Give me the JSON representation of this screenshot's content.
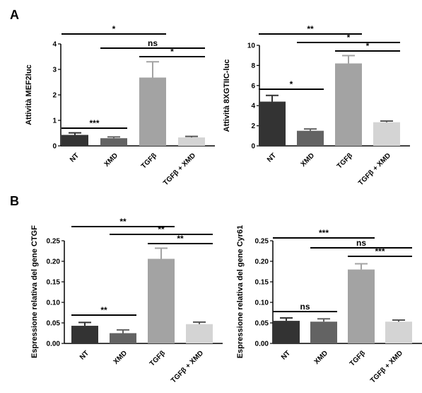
{
  "panels": [
    {
      "letter": "A"
    },
    {
      "letter": "B"
    }
  ],
  "colors": {
    "NT": "#333333",
    "XMD": "#636363",
    "TGFb": "#a3a3a3",
    "TGFb_XMD": "#d4d4d4"
  },
  "chart_data": [
    {
      "type": "bar",
      "panel": "A",
      "categories": [
        "NT",
        "XMD",
        "TGFβ",
        "TGFβ + XMD"
      ],
      "values": [
        0.43,
        0.3,
        2.68,
        0.33
      ],
      "errors": [
        0.08,
        0.05,
        0.62,
        0.04
      ],
      "ylabel": "Attività MEF2luc",
      "ylim": [
        0,
        4
      ],
      "yticks": [
        "0",
        "1",
        "2",
        "3",
        "4"
      ],
      "significance": [
        {
          "from": 0,
          "to": 2,
          "label": "*"
        },
        {
          "from": 1,
          "to": 3,
          "label": "ns"
        },
        {
          "from": 2,
          "to": 3,
          "label": "*"
        },
        {
          "from": 0,
          "to": 1,
          "label": "***"
        }
      ]
    },
    {
      "type": "bar",
      "panel": "A",
      "categories": [
        "NT",
        "XMD",
        "TGFβ",
        "TGFβ + XMD"
      ],
      "values": [
        4.4,
        1.5,
        8.2,
        2.35
      ],
      "errors": [
        0.62,
        0.18,
        0.78,
        0.12
      ],
      "ylabel": "Attività 8XGTIIC-luc",
      "ylim": [
        0,
        10
      ],
      "yticks": [
        "0",
        "2",
        "4",
        "6",
        "8",
        "10"
      ],
      "significance": [
        {
          "from": 0,
          "to": 2,
          "label": "**"
        },
        {
          "from": 1,
          "to": 3,
          "label": "*"
        },
        {
          "from": 2,
          "to": 3,
          "label": "*"
        },
        {
          "from": 0,
          "to": 1,
          "label": "*"
        }
      ]
    },
    {
      "type": "bar",
      "panel": "B",
      "categories": [
        "NT",
        "XMD",
        "TGFβ",
        "TGFβ + XMD"
      ],
      "values": [
        0.043,
        0.025,
        0.206,
        0.047
      ],
      "errors": [
        0.008,
        0.008,
        0.026,
        0.005
      ],
      "ylabel": "Espressione relativa del gene CTGF",
      "ylim": [
        0,
        0.25
      ],
      "yticks": [
        "0.00",
        "0.05",
        "0.10",
        "0.15",
        "0.20",
        "0.25"
      ],
      "significance": [
        {
          "from": 0,
          "to": 2,
          "label": "**"
        },
        {
          "from": 1,
          "to": 3,
          "label": "**"
        },
        {
          "from": 2,
          "to": 3,
          "label": "**"
        },
        {
          "from": 0,
          "to": 1,
          "label": "**"
        }
      ]
    },
    {
      "type": "bar",
      "panel": "B",
      "categories": [
        "NT",
        "XMD",
        "TGFβ",
        "TGFβ + XMD"
      ],
      "values": [
        0.055,
        0.053,
        0.18,
        0.053
      ],
      "errors": [
        0.007,
        0.007,
        0.014,
        0.004
      ],
      "ylabel": "Espressione relativa del gene Cyr61",
      "ylim": [
        0,
        0.25
      ],
      "yticks": [
        "0.00",
        "0.05",
        "0.10",
        "0.15",
        "0.20",
        "0.25"
      ],
      "significance": [
        {
          "from": 0,
          "to": 2,
          "label": "***"
        },
        {
          "from": 1,
          "to": 3,
          "label": "ns"
        },
        {
          "from": 2,
          "to": 3,
          "label": "***"
        },
        {
          "from": 0,
          "to": 1,
          "label": "ns"
        }
      ]
    }
  ]
}
